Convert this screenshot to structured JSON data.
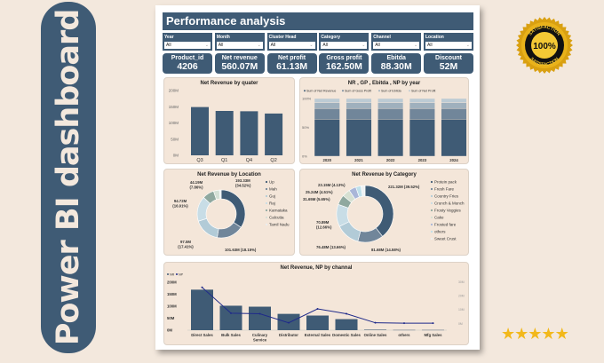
{
  "banner": {
    "text": "Power BI dashboard"
  },
  "dashboard": {
    "title": "Performance analysis",
    "filters": [
      {
        "label": "Year",
        "value": "All"
      },
      {
        "label": "Month",
        "value": "All"
      },
      {
        "label": "Cluster Head",
        "value": "All"
      },
      {
        "label": "Category",
        "value": "All"
      },
      {
        "label": "Channel",
        "value": "All"
      },
      {
        "label": "Location",
        "value": "All"
      }
    ],
    "kpis": [
      {
        "label": "Product_id",
        "value": "4206"
      },
      {
        "label": "Net revenue",
        "value": "560.07M"
      },
      {
        "label": "Net profit",
        "value": "61.13M"
      },
      {
        "label": "Gross profit",
        "value": "162.50M"
      },
      {
        "label": "Ebitda",
        "value": "88.30M"
      },
      {
        "label": "Discount",
        "value": "52M"
      }
    ]
  },
  "colors": {
    "primary": "#3f5b75",
    "panel": "#f4e6d9",
    "background": "#f3e8dd",
    "line": "#1f2a8a",
    "gold": "#f2b81b"
  },
  "badge": {
    "icon": "satisfaction-seal-icon",
    "top_text": "SATISFACTION",
    "center_text": "100%",
    "bottom_text": "SATISFACTION"
  },
  "rating": {
    "stars": 5,
    "max": 5,
    "icon": "star-icon"
  },
  "chart_data": [
    {
      "type": "bar",
      "title": "Net Revenue by quater",
      "categories": [
        "Q3",
        "Q1",
        "Q4",
        "Q2"
      ],
      "values": [
        149,
        137,
        136,
        129
      ],
      "unit": "M",
      "yticks": [
        "200M",
        "150M",
        "100M",
        "50M",
        "0M"
      ],
      "ylim": [
        0,
        200
      ],
      "grid": false
    },
    {
      "type": "bar",
      "stacked": "100%",
      "title": "NR , GP , Ebitda , NP by year",
      "categories": [
        "2020",
        "2021",
        "2022",
        "2023",
        "2024"
      ],
      "series": [
        {
          "name": "Sum of Net Revenue",
          "values": [
            64.2,
            64.2,
            64.2,
            64.2,
            64.2
          ],
          "color": "#3f5b75"
        },
        {
          "name": "Sum of Goss Profit",
          "values": [
            18.6,
            18.6,
            18.6,
            18.6,
            18.6
          ],
          "color": "#71869a"
        },
        {
          "name": "Sum of Ebitda",
          "values": [
            10.1,
            10.1,
            10.1,
            10.1,
            10.1
          ],
          "color": "#9fb0bd"
        },
        {
          "name": "Sum of Net Profit",
          "values": [
            7.1,
            7.1,
            7.1,
            7.1,
            7.1
          ],
          "color": "#bccbd4"
        }
      ],
      "yticks": [
        "100%",
        "50%",
        "0%"
      ],
      "ylim": [
        0,
        100
      ],
      "legend": "top"
    },
    {
      "type": "pie",
      "donut": true,
      "title": "Net Revenue by Location",
      "slices": [
        {
          "name": "Up",
          "value": 34.52,
          "label": "193.33M (34.52%)",
          "color": "#3f5b75"
        },
        {
          "name": "Mah",
          "value": 18.15,
          "label": "101.63M (18.15%)",
          "color": "#71869a"
        },
        {
          "name": "Guj",
          "value": 17.41,
          "label": "97.5M (17.41%)",
          "color": "#b2cbd7"
        },
        {
          "name": "Raj",
          "value": 16.91,
          "label": "94.72M (16.91%)",
          "color": "#c8dde6"
        },
        {
          "name": "Karnataka",
          "value": 7.86,
          "label": "44.19M (7.86%)",
          "color": "#8fa89f"
        },
        {
          "name": "Calcutta",
          "value": 4.0,
          "label": "",
          "color": "#d4e0d6"
        },
        {
          "name": "Tamil Nadu",
          "value": 1.15,
          "label": "",
          "color": "#e9eef0"
        }
      ],
      "legend": "right"
    },
    {
      "type": "pie",
      "donut": true,
      "title": "Net Revenue by Category",
      "slices": [
        {
          "name": "Protein pack",
          "value": 39.52,
          "label": "221.32M (39.52%)",
          "color": "#3f5b75"
        },
        {
          "name": "Fresh Fare",
          "value": 14.58,
          "label": "81.68M (14.58%)",
          "color": "#71869a"
        },
        {
          "name": "Country Fries",
          "value": 13.66,
          "label": "76.48M (13.66%)",
          "color": "#b2cbd7"
        },
        {
          "name": "Crunch & Munch",
          "value": 12.66,
          "label": "70.89M (12.66%)",
          "color": "#c8dde6"
        },
        {
          "name": "Frosty Veggies",
          "value": 5.65,
          "label": "31.65M (5.65%)",
          "color": "#8fa89f"
        },
        {
          "name": "Cake",
          "value": 4.51,
          "label": "25.24M (4.51%)",
          "color": "#d6e0d2"
        },
        {
          "name": "Frosted fare",
          "value": 4.13,
          "label": "23.15M (4.13%)",
          "color": "#a9b6d8"
        },
        {
          "name": "others",
          "value": 3.0,
          "label": "",
          "color": "#bfe0ea"
        },
        {
          "name": "Sweet Crust",
          "value": 2.29,
          "label": "",
          "color": "#eef1f2"
        }
      ],
      "legend": "right"
    },
    {
      "type": "bar+line",
      "title": "Net Revenue, NP by channal",
      "categories": [
        "Direct Sales",
        "Bulk Sales",
        "Culinary Service",
        "Distributor",
        "External Sales",
        "Domestic Sales",
        "Online Sales",
        "others",
        "Mfg Sales"
      ],
      "series": [
        {
          "name": "NR",
          "type": "bar",
          "values": [
            169,
            102,
            98,
            68,
            61,
            46,
            2,
            1,
            1
          ],
          "color": "#3f5b75",
          "axis": "left"
        },
        {
          "name": "NP",
          "type": "line",
          "values": [
            25.9,
            7.3,
            6.9,
            0.4,
            10.4,
            6.9,
            0.4,
            0.1,
            0.1
          ],
          "color": "#1f2a8a",
          "axis": "right"
        }
      ],
      "yticks": [
        "200M",
        "150M",
        "100M",
        "50M",
        "0M"
      ],
      "ylim": [
        0,
        200
      ],
      "y2ticks": [
        "30M",
        "20M",
        "10M",
        "0M"
      ],
      "y2lim": [
        0,
        30
      ],
      "legend": "top-left"
    }
  ]
}
